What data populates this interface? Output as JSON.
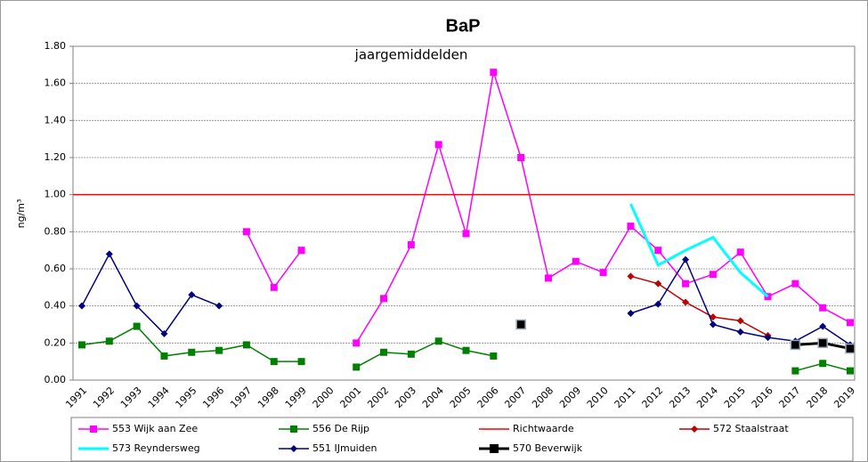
{
  "chart_data": {
    "type": "line",
    "title": "BaP",
    "subtitle": "jaargemiddelden",
    "y_label": "ng/m³",
    "categories": [
      "1991",
      "1992",
      "1993",
      "1994",
      "1995",
      "1996",
      "1997",
      "1998",
      "1999",
      "2000",
      "2001",
      "2002",
      "2003",
      "2004",
      "2005",
      "2006",
      "2007",
      "2008",
      "2009",
      "2010",
      "2011",
      "2012",
      "2013",
      "2014",
      "2015",
      "2016",
      "2017",
      "2018",
      "2019"
    ],
    "ylim": [
      0,
      1.8
    ],
    "yticks": [
      {
        "value": 0,
        "label": "0.00"
      },
      {
        "value": 0.2,
        "label": "0.20"
      },
      {
        "value": 0.4,
        "label": "0.40"
      },
      {
        "value": 0.6,
        "label": "0.60"
      },
      {
        "value": 0.8,
        "label": "0.80"
      },
      {
        "value": 1,
        "label": "1.00"
      },
      {
        "value": 1.2,
        "label": "1.20"
      },
      {
        "value": 1.4,
        "label": "1.40"
      },
      {
        "value": 1.6,
        "label": "1.60"
      },
      {
        "value": 1.8,
        "label": "1.80"
      }
    ],
    "grid": true,
    "series": [
      {
        "name": "553 Wijk aan Zee",
        "color": "#ff00ff",
        "marker": "square",
        "values": [
          null,
          null,
          null,
          null,
          null,
          null,
          0.8,
          0.5,
          0.7,
          null,
          0.2,
          0.44,
          0.73,
          1.27,
          0.79,
          1.66,
          1.2,
          0.55,
          0.64,
          0.58,
          0.83,
          0.7,
          0.52,
          0.57,
          0.69,
          0.45,
          0.52,
          0.39,
          0.31
        ]
      },
      {
        "name": "556 De Rijp",
        "color": "#008000",
        "marker": "square",
        "values": [
          0.19,
          0.21,
          0.29,
          0.13,
          0.15,
          0.16,
          0.19,
          0.1,
          0.1,
          null,
          0.07,
          0.15,
          0.14,
          0.21,
          0.16,
          0.13,
          null,
          null,
          null,
          null,
          null,
          null,
          null,
          null,
          null,
          null,
          0.05,
          0.09,
          0.05
        ]
      },
      {
        "name": "Richtwaarde",
        "color": "#ff0000",
        "marker": "none",
        "values": [
          1,
          1,
          1,
          1,
          1,
          1,
          1,
          1,
          1,
          1,
          1,
          1,
          1,
          1,
          1,
          1,
          1,
          1,
          1,
          1,
          1,
          1,
          1,
          1,
          1,
          1,
          1,
          1,
          1
        ]
      },
      {
        "name": "572 Staalstraat",
        "color": "#c00000",
        "marker": "diamond",
        "values": [
          null,
          null,
          null,
          null,
          null,
          null,
          null,
          null,
          null,
          null,
          null,
          null,
          null,
          null,
          null,
          null,
          null,
          null,
          null,
          null,
          0.56,
          0.52,
          0.42,
          0.34,
          0.32,
          0.24,
          null,
          null,
          null
        ]
      },
      {
        "name": "573 Reyndersweg",
        "color": "#00ffff",
        "marker": "none",
        "values": [
          null,
          null,
          null,
          null,
          null,
          null,
          null,
          null,
          null,
          null,
          null,
          null,
          null,
          null,
          null,
          null,
          null,
          null,
          null,
          null,
          0.95,
          0.62,
          0.7,
          0.77,
          0.58,
          0.45,
          null,
          null,
          null
        ]
      },
      {
        "name": "551 IJmuiden",
        "color": "#000080",
        "marker": "diamond",
        "values": [
          0.4,
          0.68,
          0.4,
          0.25,
          0.46,
          0.4,
          null,
          null,
          null,
          null,
          null,
          null,
          null,
          null,
          null,
          null,
          null,
          null,
          null,
          null,
          0.36,
          0.41,
          0.65,
          0.3,
          0.26,
          0.23,
          0.21,
          0.29,
          0.19
        ]
      },
      {
        "name": "570 Beverwijk",
        "color": "#000000",
        "marker": "bigsquare",
        "values": [
          null,
          null,
          null,
          null,
          null,
          null,
          null,
          null,
          null,
          null,
          null,
          null,
          null,
          null,
          null,
          null,
          0.3,
          null,
          null,
          null,
          null,
          null,
          null,
          null,
          null,
          null,
          0.19,
          0.2,
          0.17
        ]
      }
    ]
  }
}
